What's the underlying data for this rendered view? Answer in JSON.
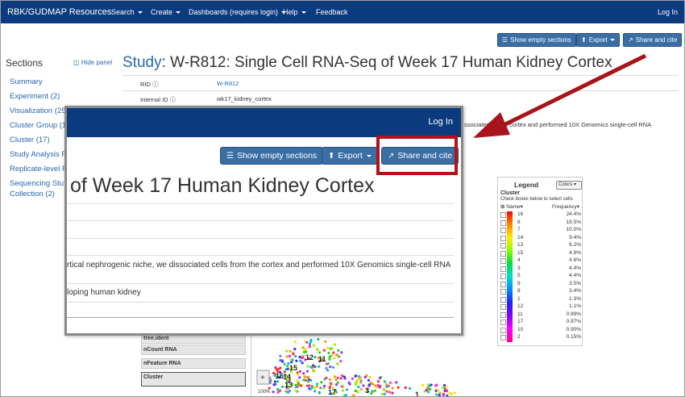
{
  "navbar": {
    "brand": "RBK/GUDMAP Resources",
    "items": [
      "Search",
      "Create",
      "Dashboards (requires login)",
      "Help",
      "Feedback"
    ],
    "login": "Log In"
  },
  "toolbar": {
    "show_empty": "Show empty sections",
    "export": "Export",
    "share": "Share and cite"
  },
  "sidebar": {
    "title": "Sections",
    "hide_panel": "Hide panel",
    "items": [
      "Summary",
      "Experiment (2)",
      "Visualization (25",
      "Cluster Group (1",
      "Cluster (17)",
      "Study Analysis F",
      "Replicate-level F",
      "Sequencing Stu",
      "Collection (2)"
    ]
  },
  "study": {
    "label": "Study",
    "title": ": W-R812: Single Cell RNA-Seq of Week 17 Human Kidney Cortex",
    "rows": [
      {
        "key": "RID",
        "value": "W-R812"
      },
      {
        "key": "Internal ID",
        "value": "wk17_kidney_cortex"
      }
    ],
    "bg_desc": "ssociated ce     the cortex and performed 10X Genomics single-cell RNA"
  },
  "side_controls": [
    "tree.ident",
    "nCount RNA",
    "nFeature RNA",
    "Cluster"
  ],
  "legend": {
    "title": "Legend",
    "colors_btn": "Colors",
    "subtitle": "Cluster",
    "hint": "Check boxes below to select cells",
    "name_hdr": "Name",
    "freq_hdr": "Frequency",
    "rows": [
      {
        "name": "16",
        "freq": "24.4%"
      },
      {
        "name": "6",
        "freq": "19.5%"
      },
      {
        "name": "7",
        "freq": "10.0%"
      },
      {
        "name": "14",
        "freq": "9.4%"
      },
      {
        "name": "13",
        "freq": "6.2%"
      },
      {
        "name": "15",
        "freq": "4.9%"
      },
      {
        "name": "4",
        "freq": "4.6%"
      },
      {
        "name": "3",
        "freq": "4.4%"
      },
      {
        "name": "5",
        "freq": "4.4%"
      },
      {
        "name": "9",
        "freq": "3.5%"
      },
      {
        "name": "8",
        "freq": "3.4%"
      },
      {
        "name": "1",
        "freq": "1.3%"
      },
      {
        "name": "12",
        "freq": "1.1%"
      },
      {
        "name": "11",
        "freq": "0.99%"
      },
      {
        "name": "17",
        "freq": "0.97%"
      },
      {
        "name": "10",
        "freq": "0.90%"
      },
      {
        "name": "2",
        "freq": "0.15%"
      }
    ]
  },
  "plot": {
    "labels": [
      "12",
      "11",
      "15",
      "16",
      "14",
      "13",
      "17",
      "3",
      "1"
    ],
    "zoom_pct": "100%"
  },
  "zoom": {
    "login": "Log In",
    "title": "of Week 17 Human Kidney Cortex",
    "line1": "rtical nephrogenic niche, we dissociated cells from the cortex and performed 10X Genomics single-cell RNA",
    "line2": "loping human kidney"
  },
  "colors": {
    "navbar": "#0b3b7e",
    "button": "#3a6ea5",
    "link": "#2a67b0",
    "highlight": "#b3121b"
  }
}
